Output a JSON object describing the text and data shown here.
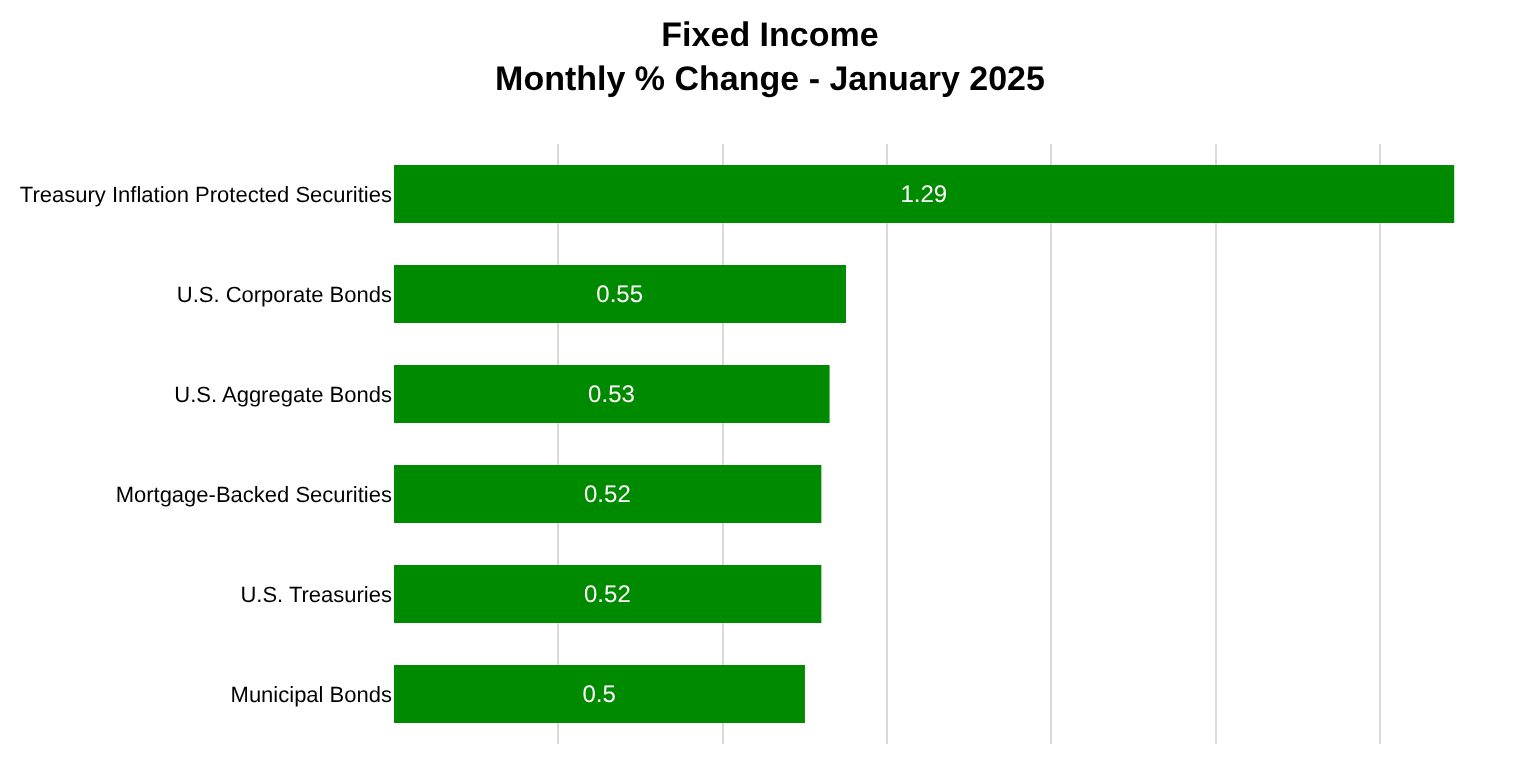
{
  "chart_data": {
    "type": "bar",
    "orientation": "horizontal",
    "title": "Fixed Income",
    "subtitle": "Monthly % Change - January 2025",
    "categories": [
      "Treasury Inflation Protected Securities",
      "U.S. Corporate Bonds",
      "U.S. Aggregate Bonds",
      "Mortgage-Backed Securities",
      "U.S. Treasuries",
      "Municipal Bonds"
    ],
    "values": [
      1.29,
      0.55,
      0.53,
      0.52,
      0.52,
      0.5
    ],
    "color": "#008a00",
    "data_labels": true,
    "grid": "x",
    "tick_labels": "y"
  }
}
